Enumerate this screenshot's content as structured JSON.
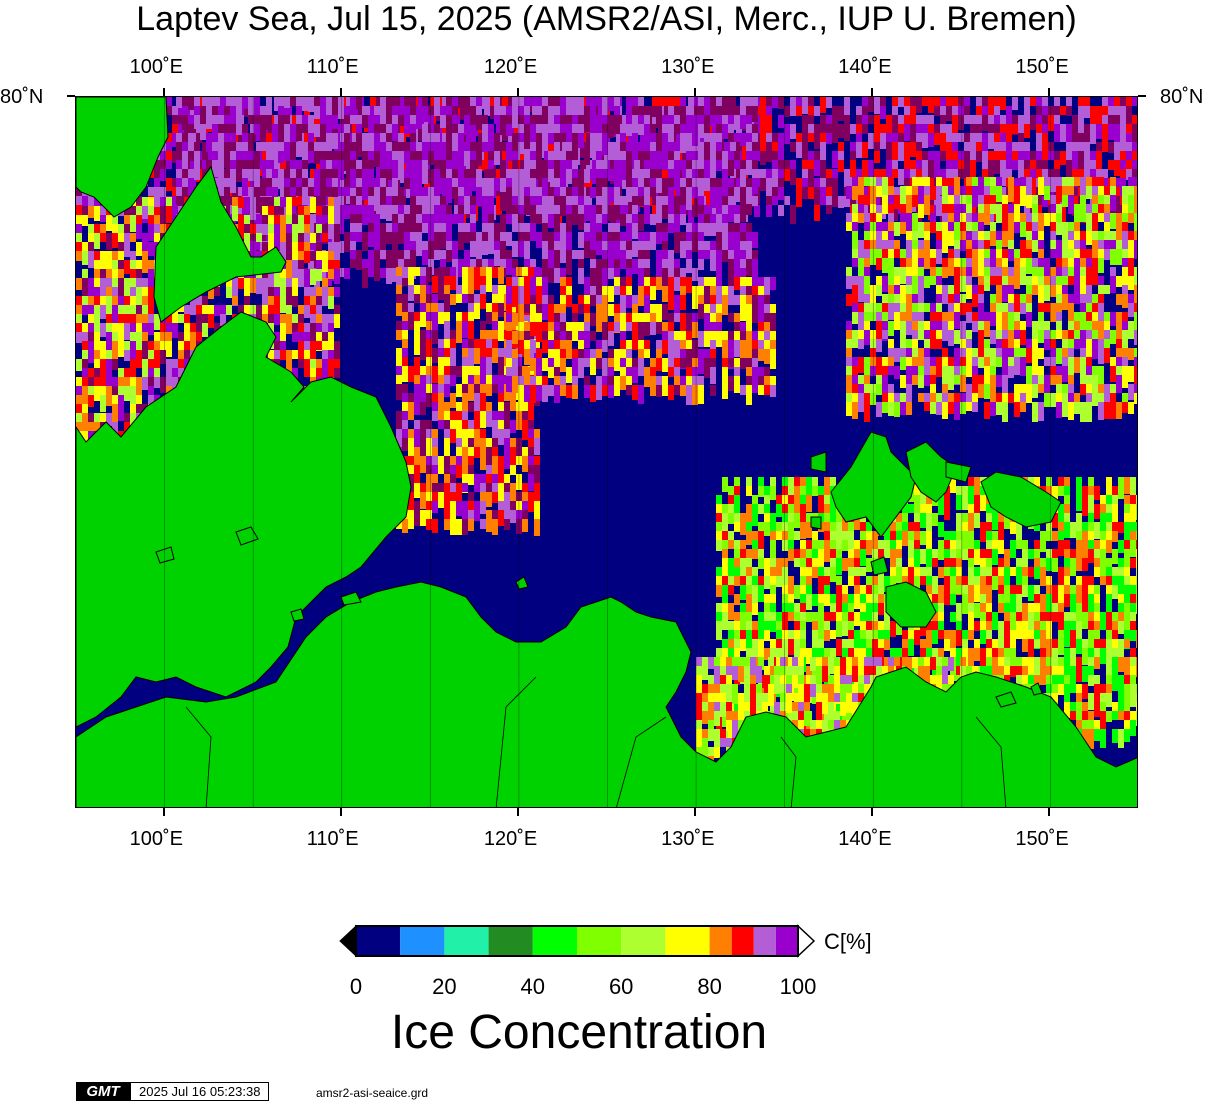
{
  "title": "Laptev Sea, Jul 15, 2025 (AMSR2/ASI, Merc., IUP U. Bremen)",
  "map": {
    "lon_min": 95,
    "lon_max": 155,
    "lon_ticks": [
      {
        "lon": 100,
        "label": "100˚E"
      },
      {
        "lon": 110,
        "label": "110˚E"
      },
      {
        "lon": 120,
        "label": "120˚E"
      },
      {
        "lon": 130,
        "label": "130˚E"
      },
      {
        "lon": 140,
        "label": "140˚E"
      },
      {
        "lon": 150,
        "label": "150˚E"
      }
    ],
    "lat_label_left": "80˚N",
    "lat_label_right": "80˚N",
    "colors": {
      "open_water": "#000080",
      "land": "#00d200",
      "coast": "#000000"
    }
  },
  "colorbar": {
    "unit_label": "C[%]",
    "tick_labels": [
      "0",
      "20",
      "40",
      "60",
      "80",
      "100"
    ],
    "bins": [
      {
        "from": 0,
        "to": 10,
        "color": "#000080"
      },
      {
        "from": 10,
        "to": 20,
        "color": "#1e90ff"
      },
      {
        "from": 20,
        "to": 30,
        "color": "#20f0a8"
      },
      {
        "from": 30,
        "to": 40,
        "color": "#228b22"
      },
      {
        "from": 40,
        "to": 50,
        "color": "#00ff00"
      },
      {
        "from": 50,
        "to": 60,
        "color": "#7fff00"
      },
      {
        "from": 60,
        "to": 70,
        "color": "#adff2f"
      },
      {
        "from": 70,
        "to": 80,
        "color": "#ffff00"
      },
      {
        "from": 80,
        "to": 85,
        "color": "#ff7f00"
      },
      {
        "from": 85,
        "to": 90,
        "color": "#ff0000"
      },
      {
        "from": 90,
        "to": 95,
        "color": "#b35ed6"
      },
      {
        "from": 95,
        "to": 100,
        "color": "#9a00cd"
      }
    ],
    "under_color": "#000000",
    "over_color": "#ffffff",
    "high_ice_color": "#800060"
  },
  "big_label": "Ice Concentration",
  "footer": {
    "logo": "GMT",
    "timestamp": "2025 Jul 16 05:23:38",
    "file": "amsr2-asi-seaice.grd"
  }
}
